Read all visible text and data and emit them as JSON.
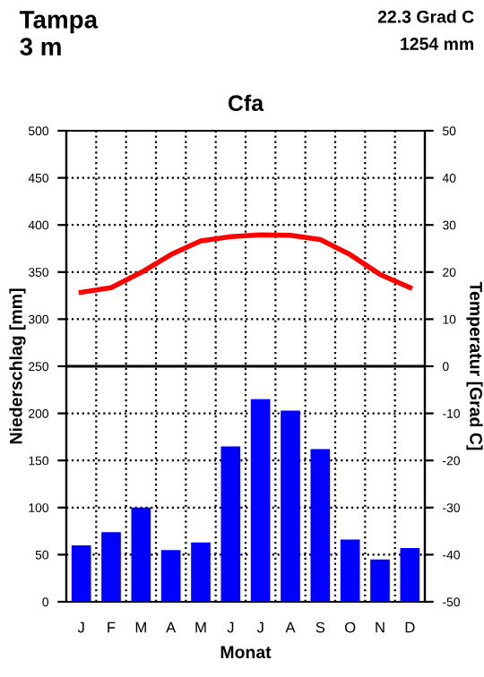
{
  "chart_data": {
    "type": "bar",
    "title": "Cfa",
    "annotations": [
      "Tampa",
      "3 m",
      "22.3 Grad C",
      "1254 mm"
    ],
    "xlabel": "Monat",
    "ylabel": "Niederschlag [mm]",
    "y2label": "Temperatur [Grad C]",
    "categories": [
      "J",
      "F",
      "M",
      "A",
      "M",
      "J",
      "J",
      "A",
      "S",
      "O",
      "N",
      "D"
    ],
    "series": [
      {
        "color": "#0000ff",
        "values": [
          60,
          74,
          100,
          55,
          63,
          165,
          215,
          203,
          162,
          66,
          45,
          57
        ]
      },
      {
        "type": "line",
        "axis": "y2",
        "color": "#ff0000",
        "values": [
          15.7,
          16.7,
          19.9,
          23.7,
          26.6,
          27.5,
          27.9,
          27.8,
          26.9,
          23.7,
          19.5,
          16.7
        ]
      }
    ],
    "ylim": [
      0,
      500
    ],
    "yticks": [
      0,
      50,
      100,
      150,
      200,
      250,
      300,
      350,
      400,
      450,
      500
    ],
    "y2lim": [
      -50,
      50
    ],
    "y2ticks": [
      -50,
      -40,
      -30,
      -20,
      -10,
      0,
      10,
      20,
      30,
      40,
      50
    ],
    "ref_lines": [
      {
        "axis": "y2",
        "value": 0,
        "color": "#000000"
      }
    ],
    "grid": true,
    "legend": false
  }
}
